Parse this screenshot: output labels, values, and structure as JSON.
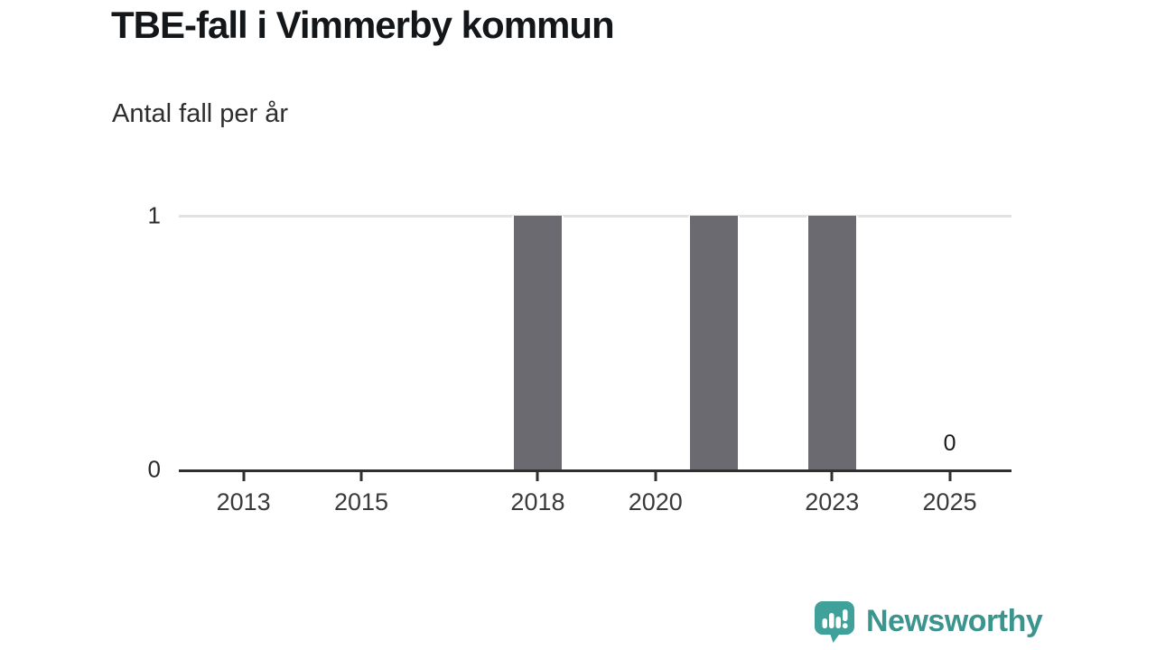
{
  "header": {
    "title": "TBE-fall i Vimmerby kommun",
    "subtitle": "Antal fall per år"
  },
  "chart_data": {
    "type": "bar",
    "title": "TBE-fall i Vimmerby kommun",
    "subtitle": "Antal fall per år",
    "xlabel": "",
    "ylabel": "Antal fall per år",
    "x": [
      2012,
      2013,
      2014,
      2015,
      2016,
      2017,
      2018,
      2019,
      2020,
      2021,
      2022,
      2023,
      2024,
      2025
    ],
    "values": [
      0,
      0,
      0,
      0,
      0,
      0,
      1,
      0,
      0,
      1,
      0,
      1,
      0,
      0
    ],
    "x_ticks": [
      2013,
      2015,
      2018,
      2020,
      2023,
      2025
    ],
    "y_ticks": [
      0,
      1
    ],
    "ylim": [
      0,
      1
    ],
    "x_range": [
      2011.9,
      2026.05
    ],
    "y_gridlines": [
      1
    ],
    "grid": "horizontal",
    "legend": "none",
    "annotation": {
      "year": 2025,
      "label": "0"
    },
    "bar_color": "#6c6a71",
    "gridline_color": "#e2e2e2",
    "axis_color": "#2f2f2f"
  },
  "footer": {
    "brand": "Newsworthy",
    "brand_color": "#3b948e",
    "logo_icon": "newsworthy-speech-bubble-bar-chart-icon"
  }
}
